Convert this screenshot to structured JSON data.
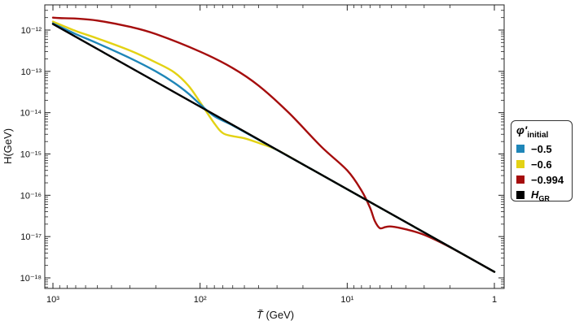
{
  "chart_data": {
    "type": "line",
    "xlabel": "T̃ (GeV)",
    "ylabel": "H(GeV)",
    "x_scale": "log-reversed",
    "y_scale": "log",
    "xlim": [
      1000,
      1
    ],
    "ylim": [
      5e-19,
      3e-12
    ],
    "x_ticks": [
      1000,
      100,
      10,
      1
    ],
    "x_tick_labels": [
      "10³",
      "10²",
      "10¹",
      "1"
    ],
    "y_ticks": [
      1e-12,
      1e-13,
      1e-14,
      1e-15,
      1e-16,
      1e-17,
      1e-18
    ],
    "y_tick_labels": [
      "10⁻¹²",
      "10⁻¹³",
      "10⁻¹⁴",
      "10⁻¹⁵",
      "10⁻¹⁶",
      "10⁻¹⁷",
      "10⁻¹⁸"
    ],
    "legend": {
      "position": "right-outside",
      "title": "φ'",
      "title_sub": "initial"
    },
    "series": [
      {
        "name": "−0.5",
        "color": "#1f86b8",
        "x": [
          1000,
          700,
          500,
          300,
          200,
          150,
          120,
          100,
          80,
          60,
          40,
          30,
          20,
          10,
          5,
          3,
          2,
          1
        ],
        "y": [
          1.45e-12,
          8e-13,
          4.8e-13,
          2.1e-13,
          1e-13,
          5.3e-14,
          2.9e-14,
          1.6e-14,
          8.2e-15,
          4.9e-15,
          2.2e-15,
          1.25e-15,
          5.6e-16,
          1.4e-16,
          3.5e-17,
          1.26e-17,
          5.6e-18,
          1.4e-18
        ]
      },
      {
        "name": "−0.6",
        "color": "#e3d214",
        "x": [
          1000,
          700,
          500,
          300,
          200,
          150,
          120,
          100,
          80,
          70,
          60,
          50,
          40,
          30,
          20,
          10,
          5,
          3,
          2,
          1
        ],
        "y": [
          1.6e-12,
          9.5e-13,
          6.3e-13,
          3.2e-13,
          1.65e-13,
          9.5e-14,
          4.5e-14,
          1.8e-14,
          5.5e-15,
          3.2e-15,
          2.7e-15,
          2.4e-15,
          1.85e-15,
          1.25e-15,
          5.6e-16,
          1.4e-16,
          3.5e-17,
          1.26e-17,
          5.6e-18,
          1.4e-18
        ]
      },
      {
        "name": "−0.994",
        "color": "#a50d0d",
        "x": [
          1000,
          900,
          700,
          500,
          300,
          200,
          100,
          60,
          40,
          25,
          15,
          10,
          8,
          7,
          6.5,
          6,
          5.5,
          5,
          4,
          3,
          2,
          1
        ],
        "y": [
          2e-12,
          1.95e-12,
          1.9e-12,
          1.7e-12,
          1.2e-12,
          8e-13,
          3e-13,
          1.2e-13,
          4.5e-14,
          1e-14,
          1.5e-15,
          4e-16,
          1.3e-16,
          5e-17,
          2.4e-17,
          1.6e-17,
          1.7e-17,
          1.75e-17,
          1.5e-17,
          1.1e-17,
          5.5e-18,
          1.4e-18
        ]
      },
      {
        "name": "H",
        "name_sub": "GR",
        "color": "#000000",
        "x": [
          1000,
          1
        ],
        "y": [
          1.4e-12,
          1.4e-18
        ]
      }
    ]
  }
}
